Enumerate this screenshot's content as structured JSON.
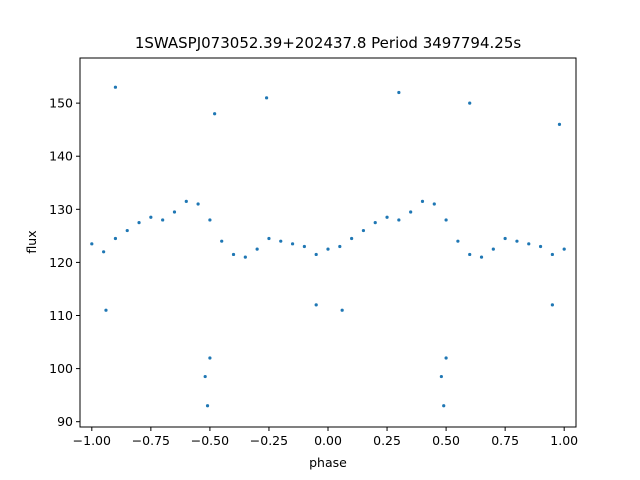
{
  "chart_data": {
    "type": "scatter",
    "title": "1SWASPJ073052.39+202437.8 Period 3497794.25s",
    "xlabel": "phase",
    "ylabel": "flux",
    "xlim": [
      -1.05,
      1.05
    ],
    "ylim": [
      89,
      158.5
    ],
    "x_ticks": [
      -1.0,
      -0.75,
      -0.5,
      -0.25,
      0.0,
      0.25,
      0.5,
      0.75,
      1.0
    ],
    "x_tick_labels": [
      "−1.00",
      "−0.75",
      "−0.50",
      "−0.25",
      "0.00",
      "0.25",
      "0.50",
      "0.75",
      "1.00"
    ],
    "y_ticks": [
      90,
      100,
      110,
      120,
      130,
      140,
      150
    ],
    "y_tick_labels": [
      "90",
      "100",
      "110",
      "120",
      "130",
      "140",
      "150"
    ],
    "grid": false,
    "marker_color": "#1f77b4",
    "series": [
      {
        "points": [
          [
            -1.0,
            123.5
          ],
          [
            -0.95,
            122.0
          ],
          [
            -0.9,
            124.5
          ],
          [
            -0.85,
            126.0
          ],
          [
            -0.8,
            127.5
          ],
          [
            -0.75,
            128.5
          ],
          [
            -0.7,
            128.0
          ],
          [
            -0.65,
            129.5
          ],
          [
            -0.6,
            131.5
          ],
          [
            -0.55,
            131.0
          ],
          [
            -0.5,
            128.0
          ],
          [
            -0.45,
            124.0
          ],
          [
            -0.4,
            121.5
          ],
          [
            -0.35,
            121.0
          ],
          [
            -0.3,
            122.5
          ],
          [
            -0.25,
            124.5
          ],
          [
            -0.2,
            124.0
          ],
          [
            -0.15,
            123.5
          ],
          [
            -0.1,
            123.0
          ],
          [
            -0.05,
            121.5
          ],
          [
            0.0,
            122.5
          ],
          [
            0.05,
            123.0
          ],
          [
            0.1,
            124.5
          ],
          [
            0.15,
            126.0
          ],
          [
            0.2,
            127.5
          ],
          [
            0.25,
            128.5
          ],
          [
            0.3,
            128.0
          ],
          [
            0.35,
            129.5
          ],
          [
            0.4,
            131.5
          ],
          [
            0.45,
            131.0
          ],
          [
            0.5,
            128.0
          ],
          [
            0.55,
            124.0
          ],
          [
            0.6,
            121.5
          ],
          [
            0.65,
            121.0
          ],
          [
            0.7,
            122.5
          ],
          [
            0.75,
            124.5
          ],
          [
            0.8,
            124.0
          ],
          [
            0.85,
            123.5
          ],
          [
            0.9,
            123.0
          ],
          [
            0.95,
            121.5
          ],
          [
            1.0,
            122.5
          ],
          [
            -0.94,
            111.0
          ],
          [
            -0.52,
            98.5
          ],
          [
            -0.51,
            93.0
          ],
          [
            -0.5,
            102.0
          ],
          [
            -0.05,
            112.0
          ],
          [
            0.06,
            111.0
          ],
          [
            0.48,
            98.5
          ],
          [
            0.49,
            93.0
          ],
          [
            0.5,
            102.0
          ],
          [
            0.95,
            112.0
          ],
          [
            -0.9,
            153.0
          ],
          [
            -0.48,
            148.0
          ],
          [
            -0.26,
            151.0
          ],
          [
            0.3,
            152.0
          ],
          [
            0.6,
            150.0
          ],
          [
            0.98,
            146.0
          ]
        ]
      }
    ]
  }
}
